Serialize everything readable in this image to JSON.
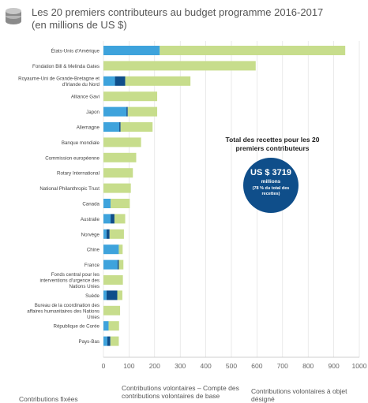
{
  "header": {
    "title_line1": "Les 20 premiers contributeurs au budget programme 2016-2017",
    "title_line2": "(en millions de US $)",
    "icon": "coins-icon"
  },
  "callout": {
    "title": "Total des recettes pour les 20 premiers contributeurs",
    "amount": "US $ 3719",
    "unit": "millions",
    "share": "(78 % du total des recettes)"
  },
  "legend": {
    "assessed": "Contributions fixées",
    "core": "Contributions volontaires – Compte des contributions volontaires de base",
    "specified": "Contributions volontaires à objet désigné"
  },
  "colors": {
    "assessed": "#3ea3dc",
    "core": "#0f4e8a",
    "specified": "#c7dd8c",
    "callout": "#0f4e8a"
  },
  "chart_data": {
    "type": "bar",
    "orientation": "horizontal",
    "stacked": true,
    "title": "Les 20 premiers contributeurs au budget programme 2016-2017 (en millions de US $)",
    "xlim": [
      0,
      1000
    ],
    "xticks": [
      0,
      100,
      200,
      300,
      400,
      500,
      600,
      700,
      800,
      900,
      1000
    ],
    "grid": true,
    "legend_position": "bottom",
    "categories": [
      "États-Unis d'Amérique",
      "Fondation Bill & Melinda Gates",
      "Royaume-Uni de Grande-Bretagne et d'Irlande du Nord",
      "Alliance Gavi",
      "Japon",
      "Allemagne",
      "Banque mondiale",
      "Commission européenne",
      "Rotary International",
      "National Philanthropic Trust",
      "Canada",
      "Australie",
      "Norvège",
      "Chine",
      "France",
      "Fonds central pour les interventions d'urgence des Nations Unies",
      "Suède",
      "Bureau de la coordination des affaires humanitaires des Nations Unies",
      "République de Corée",
      "Pays-Bas"
    ],
    "series": [
      {
        "name": "Contributions fixées",
        "values": [
          220,
          0,
          45,
          0,
          90,
          62,
          0,
          0,
          0,
          0,
          28,
          28,
          12,
          60,
          55,
          0,
          12,
          0,
          20,
          15
        ]
      },
      {
        "name": "Contributions volontaires – Compte des contributions volontaires de base",
        "values": [
          0,
          0,
          40,
          0,
          5,
          5,
          0,
          0,
          0,
          0,
          0,
          15,
          12,
          0,
          5,
          0,
          42,
          0,
          0,
          12
        ]
      },
      {
        "name": "Contributions volontaires à objet désigné",
        "values": [
          725,
          595,
          255,
          210,
          115,
          125,
          147,
          128,
          115,
          107,
          75,
          42,
          56,
          15,
          18,
          76,
          20,
          65,
          41,
          33
        ]
      }
    ]
  }
}
